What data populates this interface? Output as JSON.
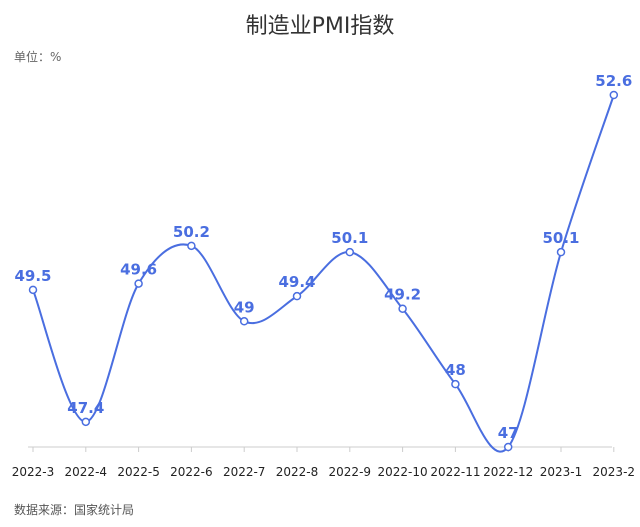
{
  "chart_data": {
    "type": "line",
    "title": "制造业PMI指数",
    "unit_label": "单位：%",
    "source_label": "数据来源：国家统计局",
    "categories": [
      "2022-3",
      "2022-4",
      "2022-5",
      "2022-6",
      "2022-7",
      "2022-8",
      "2022-9",
      "2022-10",
      "2022-11",
      "2022-12",
      "2023-1",
      "2023-2"
    ],
    "series": [
      {
        "values": [
          49.5,
          47.4,
          49.6,
          50.2,
          49,
          49.4,
          50.1,
          49.2,
          48,
          47,
          50.1,
          52.6
        ]
      }
    ],
    "data_labels": [
      "49.5",
      "47.4",
      "49.6",
      "50.2",
      "49",
      "49.4",
      "50.1",
      "49.2",
      "48",
      "47",
      "50.1",
      "52.6"
    ],
    "ylim": [
      47,
      52.6
    ],
    "grid": false,
    "smooth": true,
    "line_color": "#4a6ee0"
  }
}
